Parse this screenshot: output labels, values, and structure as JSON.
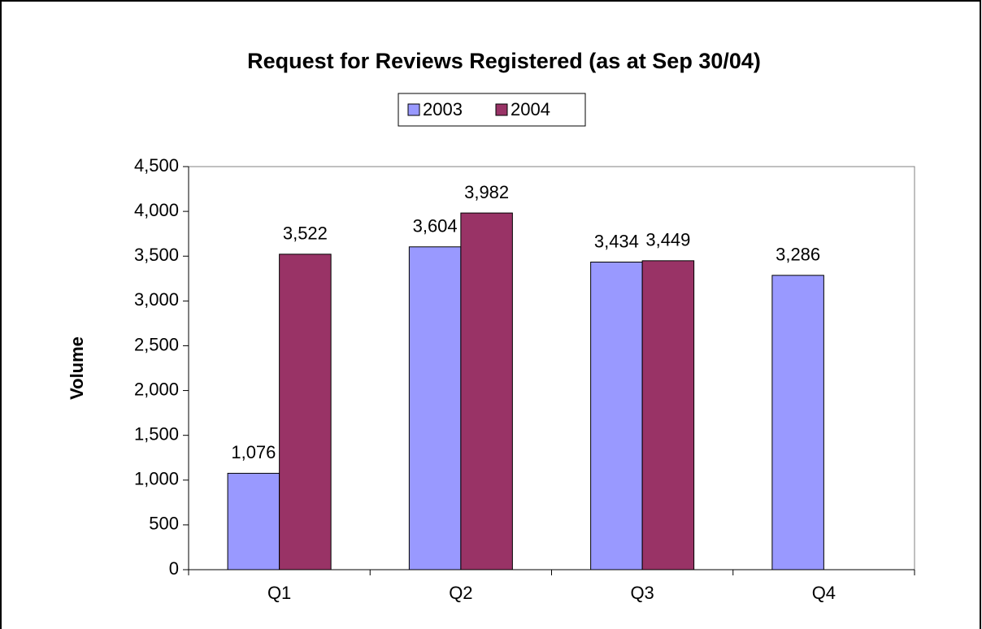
{
  "chart_data": {
    "type": "bar",
    "title": "Request for Reviews Registered (as at Sep 30/04)",
    "ylabel": "Volume",
    "categories": [
      "Q1",
      "Q2",
      "Q3",
      "Q4"
    ],
    "series": [
      {
        "name": "2003",
        "color": "#9999ff",
        "values": [
          1076,
          3604,
          3434,
          3286
        ],
        "value_labels": [
          "1,076",
          "3,604",
          "3,434",
          "3,286"
        ]
      },
      {
        "name": "2004",
        "color": "#993366",
        "values": [
          3522,
          3982,
          3449,
          null
        ],
        "value_labels": [
          "3,522",
          "3,982",
          "3,449",
          null
        ]
      }
    ],
    "ylim": [
      0,
      4500
    ],
    "yticks": [
      0,
      500,
      {
        "value": 1000,
        "label": "1,000"
      },
      {
        "value": 1500,
        "label": "1,500"
      },
      {
        "value": 2000,
        "label": "2,000"
      },
      {
        "value": 2500,
        "label": "2,500"
      },
      {
        "value": 3000,
        "label": "3,000"
      },
      {
        "value": 3500,
        "label": "3,500"
      },
      {
        "value": 4000,
        "label": "4,000"
      },
      {
        "value": 4500,
        "label": "4,500"
      }
    ],
    "grid": false,
    "legend": "top"
  }
}
